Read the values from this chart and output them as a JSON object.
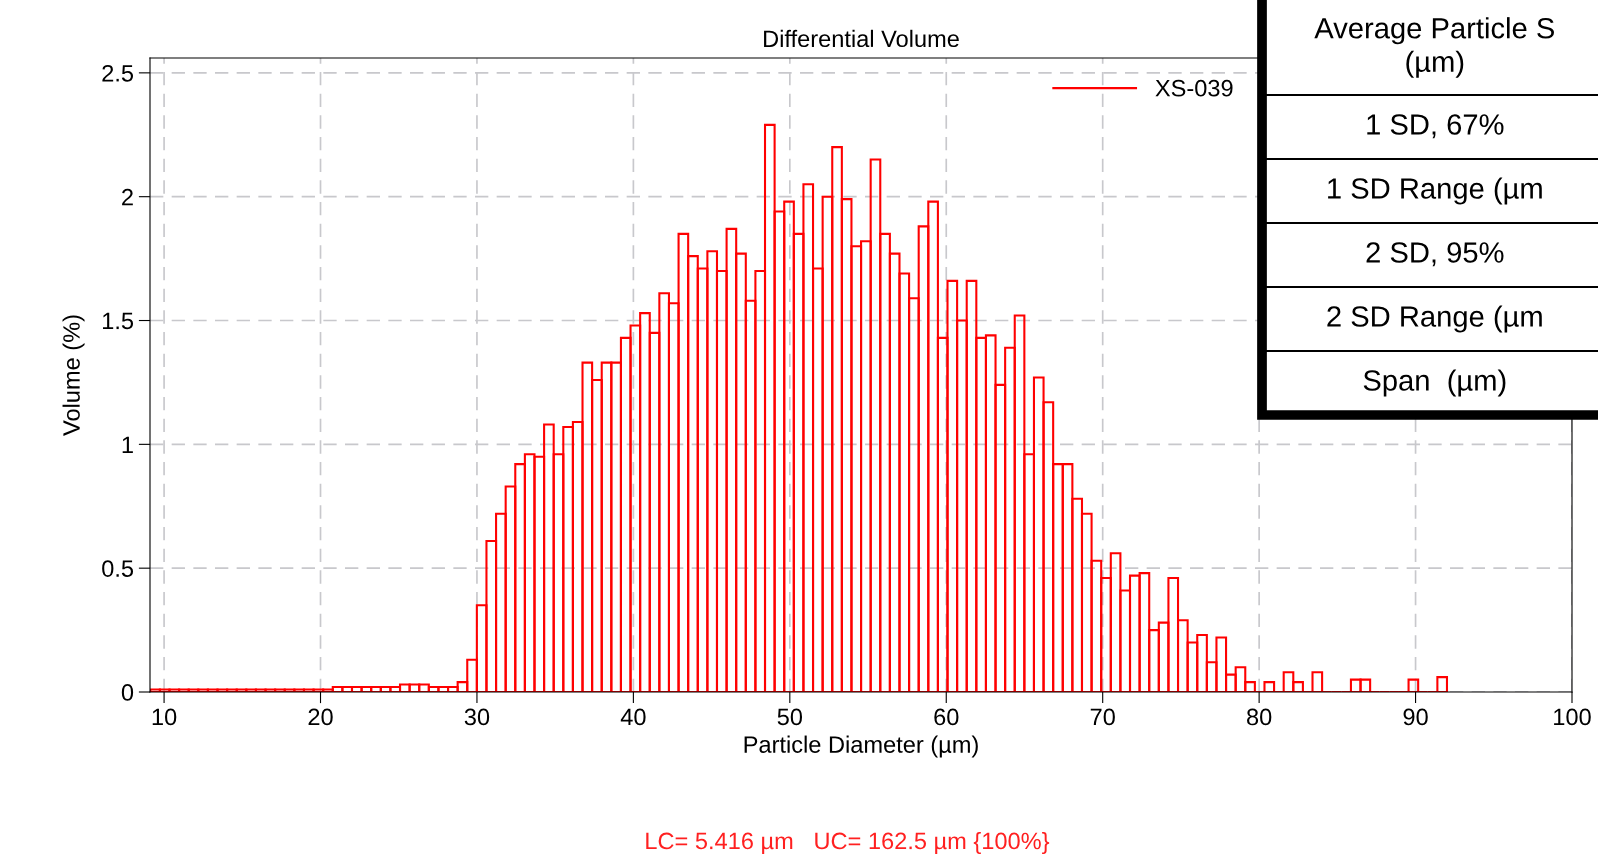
{
  "chart_data": {
    "type": "histogram",
    "title": "Differential Volume",
    "xlabel": "Particle Diameter (µm)",
    "ylabel": "Volume (%)",
    "bins": [
      9.118,
      9.732,
      10.346,
      10.96,
      11.574,
      12.188,
      12.802,
      13.416,
      14.03,
      14.644,
      15.258,
      15.872,
      16.486,
      17.1,
      17.714,
      18.328,
      18.942,
      19.556,
      20.17,
      20.784,
      21.398,
      22.012,
      22.626,
      23.24,
      23.854,
      24.468,
      25.082,
      25.696,
      26.31,
      26.924,
      27.538,
      28.152,
      28.766,
      29.38,
      29.994,
      30.608,
      31.222,
      31.836,
      32.45,
      33.064,
      33.678,
      34.292,
      34.906,
      35.52,
      36.134,
      36.748,
      37.362,
      37.976,
      38.59,
      39.204,
      39.818,
      40.432,
      41.046,
      41.66,
      42.274,
      42.888,
      43.502,
      44.116,
      44.73,
      45.344,
      45.958,
      46.572,
      47.186,
      47.8,
      48.414,
      49.028,
      49.642,
      50.256,
      50.87,
      51.484,
      52.098,
      52.712,
      53.326,
      53.94,
      54.554,
      55.168,
      55.782,
      56.396,
      57.01,
      57.624,
      58.238,
      58.852,
      59.466,
      60.08,
      60.694,
      61.308,
      61.922,
      62.536,
      63.15,
      63.764,
      64.378,
      64.992,
      65.606,
      66.22,
      66.834,
      67.448,
      68.062,
      68.676,
      69.29,
      69.904,
      70.518,
      71.132,
      71.746,
      72.36,
      72.974,
      73.588,
      74.202,
      74.816,
      75.43,
      76.044,
      76.658,
      77.272,
      77.886,
      78.5,
      79.114,
      79.728,
      80.342,
      80.956,
      81.57,
      82.184,
      82.798,
      83.412,
      84.026,
      84.64,
      85.254,
      85.868,
      86.482,
      87.096,
      87.71,
      88.324,
      88.938,
      89.552,
      90.166,
      90.78,
      91.394,
      92.008
    ],
    "series": [
      {
        "name": "XS-039",
        "color": "#ff0000",
        "values": [
          0.01,
          0.01,
          0.01,
          0.01,
          0.01,
          0.01,
          0.01,
          0.01,
          0.01,
          0.01,
          0.01,
          0.01,
          0.01,
          0.01,
          0.01,
          0.01,
          0.01,
          0.01,
          0.01,
          0.02,
          0.02,
          0.02,
          0.02,
          0.02,
          0.02,
          0.02,
          0.03,
          0.03,
          0.03,
          0.02,
          0.02,
          0.02,
          0.04,
          0.13,
          0.35,
          0.61,
          0.72,
          0.83,
          0.92,
          0.96,
          0.95,
          1.08,
          0.96,
          1.07,
          1.09,
          1.33,
          1.26,
          1.33,
          1.33,
          1.43,
          1.48,
          1.53,
          1.45,
          1.61,
          1.57,
          1.85,
          1.76,
          1.71,
          1.78,
          1.7,
          1.87,
          1.77,
          1.58,
          1.7,
          2.29,
          1.94,
          1.98,
          1.85,
          2.05,
          1.71,
          2.0,
          2.2,
          1.99,
          1.8,
          1.82,
          2.15,
          1.85,
          1.77,
          1.69,
          1.59,
          1.88,
          1.98,
          1.43,
          1.66,
          1.5,
          1.66,
          1.43,
          1.44,
          1.24,
          1.39,
          1.52,
          0.96,
          1.27,
          1.17,
          0.92,
          0.92,
          0.78,
          0.72,
          0.53,
          0.46,
          0.56,
          0.41,
          0.47,
          0.48,
          0.25,
          0.28,
          0.46,
          0.29,
          0.2,
          0.23,
          0.12,
          0.22,
          0.07,
          0.1,
          0.04,
          0,
          0.04,
          0,
          0.08,
          0.04,
          0,
          0.08,
          0,
          0,
          0,
          0.05,
          0.05,
          0,
          0,
          0,
          0,
          0.05,
          0,
          0,
          0.06
        ]
      }
    ],
    "xlim": [
      9.1,
      100
    ],
    "ylim": [
      0,
      2.56
    ],
    "xticks": [
      10,
      20,
      30,
      40,
      50,
      60,
      70,
      80,
      90,
      100
    ],
    "yticks": [
      0,
      0.5,
      1,
      1.5,
      2,
      2.5
    ],
    "grid": true,
    "legend": "top right",
    "annotations": [
      "LC= 5.416 µm   UC= 162.5 µm {100%}",
      "Average Particle S\n(µm)",
      "1 SD, 67%",
      "1 SD Range (µm",
      "2 SD, 95%",
      "2 SD Range (µm",
      "Span  (µm)"
    ]
  }
}
